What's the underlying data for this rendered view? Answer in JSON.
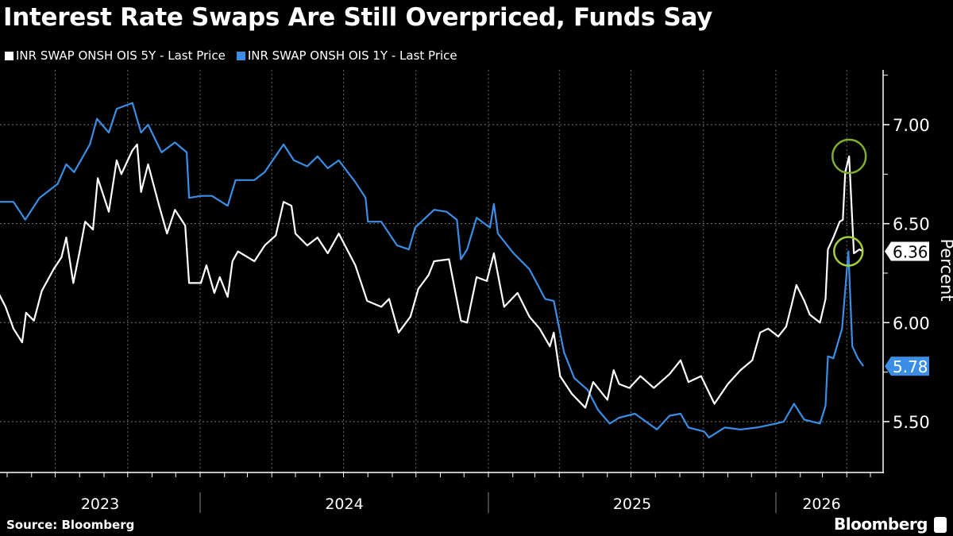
{
  "chart_data": {
    "type": "line",
    "title": "Interest Rate Swaps Are Still Overpriced, Funds Say",
    "ylabel": "Percent",
    "ylim": [
      5.3,
      7.3
    ],
    "yticks": [
      "7.00",
      "6.50",
      "6.00",
      "5.50"
    ],
    "ytick_values": [
      7.0,
      6.5,
      6.0,
      5.5
    ],
    "xticks": [
      "2023",
      "2024",
      "2025",
      "2026"
    ],
    "y_axis_side": "right",
    "grid": true,
    "legend_position": "top-left",
    "source": "Source: Bloomberg",
    "brand": "Bloomberg",
    "series": [
      {
        "name": "INR SWAP ONSH OIS 5Y - Last Price",
        "color": "#ffffff",
        "last_value_label": "6.36",
        "points": [
          [
            "2023-04-20",
            6.15
          ],
          [
            "2023-04-29",
            6.08
          ],
          [
            "2023-05-09",
            5.97
          ],
          [
            "2023-05-20",
            5.9
          ],
          [
            "2023-05-25",
            6.05
          ],
          [
            "2023-06-04",
            6.01
          ],
          [
            "2023-06-14",
            6.16
          ],
          [
            "2023-06-29",
            6.27
          ],
          [
            "2023-07-09",
            6.33
          ],
          [
            "2023-07-15",
            6.43
          ],
          [
            "2023-07-24",
            6.2
          ],
          [
            "2023-08-01",
            6.36
          ],
          [
            "2023-08-08",
            6.51
          ],
          [
            "2023-08-18",
            6.47
          ],
          [
            "2023-08-24",
            6.73
          ],
          [
            "2023-09-07",
            6.56
          ],
          [
            "2023-09-17",
            6.82
          ],
          [
            "2023-09-23",
            6.75
          ],
          [
            "2023-10-07",
            6.87
          ],
          [
            "2023-10-13",
            6.9
          ],
          [
            "2023-10-18",
            6.66
          ],
          [
            "2023-10-27",
            6.8
          ],
          [
            "2023-11-10",
            6.59
          ],
          [
            "2023-11-20",
            6.45
          ],
          [
            "2023-11-30",
            6.57
          ],
          [
            "2023-12-13",
            6.49
          ],
          [
            "2023-12-18",
            6.2
          ],
          [
            "2024-01-02",
            6.2
          ],
          [
            "2024-01-09",
            6.29
          ],
          [
            "2024-01-19",
            6.15
          ],
          [
            "2024-01-26",
            6.23
          ],
          [
            "2024-02-05",
            6.13
          ],
          [
            "2024-02-11",
            6.31
          ],
          [
            "2024-02-18",
            6.36
          ],
          [
            "2024-03-10",
            6.31
          ],
          [
            "2024-03-23",
            6.39
          ],
          [
            "2024-04-06",
            6.44
          ],
          [
            "2024-04-16",
            6.61
          ],
          [
            "2024-04-26",
            6.59
          ],
          [
            "2024-05-01",
            6.45
          ],
          [
            "2024-05-16",
            6.39
          ],
          [
            "2024-05-29",
            6.43
          ],
          [
            "2024-06-11",
            6.35
          ],
          [
            "2024-06-25",
            6.45
          ],
          [
            "2024-07-16",
            6.29
          ],
          [
            "2024-07-31",
            6.11
          ],
          [
            "2024-08-18",
            6.08
          ],
          [
            "2024-08-28",
            6.12
          ],
          [
            "2024-09-09",
            5.95
          ],
          [
            "2024-09-24",
            6.03
          ],
          [
            "2024-10-04",
            6.17
          ],
          [
            "2024-10-17",
            6.24
          ],
          [
            "2024-10-24",
            6.31
          ],
          [
            "2024-11-12",
            6.32
          ],
          [
            "2024-11-27",
            6.01
          ],
          [
            "2024-12-05",
            6.0
          ],
          [
            "2024-12-17",
            6.23
          ],
          [
            "2024-12-30",
            6.21
          ],
          [
            "2025-01-08",
            6.35
          ],
          [
            "2025-01-21",
            6.08
          ],
          [
            "2025-02-07",
            6.15
          ],
          [
            "2025-02-22",
            6.03
          ],
          [
            "2025-03-07",
            5.97
          ],
          [
            "2025-03-20",
            5.88
          ],
          [
            "2025-03-25",
            5.95
          ],
          [
            "2025-04-02",
            5.73
          ],
          [
            "2025-04-17",
            5.64
          ],
          [
            "2025-05-04",
            5.57
          ],
          [
            "2025-05-14",
            5.7
          ],
          [
            "2025-06-01",
            5.61
          ],
          [
            "2025-06-09",
            5.76
          ],
          [
            "2025-06-16",
            5.69
          ],
          [
            "2025-06-29",
            5.67
          ],
          [
            "2025-07-13",
            5.73
          ],
          [
            "2025-07-30",
            5.67
          ],
          [
            "2025-08-19",
            5.74
          ],
          [
            "2025-09-02",
            5.81
          ],
          [
            "2025-09-12",
            5.7
          ],
          [
            "2025-09-28",
            5.73
          ],
          [
            "2025-10-15",
            5.59
          ],
          [
            "2025-11-01",
            5.69
          ],
          [
            "2025-11-17",
            5.76
          ],
          [
            "2025-12-02",
            5.81
          ],
          [
            "2025-12-12",
            5.95
          ],
          [
            "2025-12-22",
            5.97
          ],
          [
            "2026-01-04",
            5.93
          ],
          [
            "2026-01-14",
            5.98
          ],
          [
            "2026-01-21",
            6.09
          ],
          [
            "2026-01-27",
            6.19
          ],
          [
            "2026-02-06",
            6.11
          ],
          [
            "2026-02-13",
            6.04
          ],
          [
            "2026-02-26",
            6.0
          ],
          [
            "2026-03-05",
            6.12
          ],
          [
            "2026-03-08",
            6.37
          ],
          [
            "2026-03-15",
            6.43
          ],
          [
            "2026-03-23",
            6.51
          ],
          [
            "2026-03-27",
            6.52
          ],
          [
            "2026-03-30",
            6.76
          ],
          [
            "2026-04-04",
            6.84
          ],
          [
            "2026-04-10",
            6.35
          ],
          [
            "2026-04-17",
            6.37
          ],
          [
            "2026-04-22",
            6.36
          ]
        ]
      },
      {
        "name": "INR SWAP ONSH OIS 1Y - Last Price",
        "color": "#3a8ee6",
        "last_value_label": "5.78",
        "points": [
          [
            "2023-04-20",
            6.61
          ],
          [
            "2023-05-09",
            6.61
          ],
          [
            "2023-05-24",
            6.52
          ],
          [
            "2023-06-11",
            6.63
          ],
          [
            "2023-07-04",
            6.7
          ],
          [
            "2023-07-15",
            6.8
          ],
          [
            "2023-07-25",
            6.76
          ],
          [
            "2023-08-14",
            6.9
          ],
          [
            "2023-08-23",
            7.03
          ],
          [
            "2023-09-07",
            6.96
          ],
          [
            "2023-09-17",
            7.08
          ],
          [
            "2023-10-07",
            7.11
          ],
          [
            "2023-10-18",
            6.96
          ],
          [
            "2023-10-27",
            7.0
          ],
          [
            "2023-11-13",
            6.86
          ],
          [
            "2023-11-30",
            6.91
          ],
          [
            "2023-12-15",
            6.86
          ],
          [
            "2023-12-18",
            6.63
          ],
          [
            "2024-01-02",
            6.64
          ],
          [
            "2024-01-16",
            6.64
          ],
          [
            "2024-02-05",
            6.59
          ],
          [
            "2024-02-15",
            6.72
          ],
          [
            "2024-03-10",
            6.72
          ],
          [
            "2024-03-23",
            6.76
          ],
          [
            "2024-04-16",
            6.9
          ],
          [
            "2024-04-29",
            6.82
          ],
          [
            "2024-05-16",
            6.79
          ],
          [
            "2024-05-29",
            6.84
          ],
          [
            "2024-06-11",
            6.78
          ],
          [
            "2024-06-25",
            6.82
          ],
          [
            "2024-07-16",
            6.71
          ],
          [
            "2024-07-29",
            6.63
          ],
          [
            "2024-08-01",
            6.51
          ],
          [
            "2024-08-18",
            6.51
          ],
          [
            "2024-09-07",
            6.39
          ],
          [
            "2024-09-22",
            6.37
          ],
          [
            "2024-09-30",
            6.48
          ],
          [
            "2024-10-24",
            6.57
          ],
          [
            "2024-11-09",
            6.56
          ],
          [
            "2024-11-22",
            6.52
          ],
          [
            "2024-11-27",
            6.32
          ],
          [
            "2024-12-05",
            6.37
          ],
          [
            "2024-12-17",
            6.53
          ],
          [
            "2025-01-03",
            6.48
          ],
          [
            "2025-01-08",
            6.6
          ],
          [
            "2025-01-13",
            6.45
          ],
          [
            "2025-02-02",
            6.35
          ],
          [
            "2025-02-22",
            6.27
          ],
          [
            "2025-03-14",
            6.12
          ],
          [
            "2025-03-25",
            6.11
          ],
          [
            "2025-04-07",
            5.85
          ],
          [
            "2025-04-20",
            5.72
          ],
          [
            "2025-05-07",
            5.66
          ],
          [
            "2025-05-20",
            5.56
          ],
          [
            "2025-06-04",
            5.49
          ],
          [
            "2025-06-16",
            5.52
          ],
          [
            "2025-07-06",
            5.54
          ],
          [
            "2025-08-03",
            5.46
          ],
          [
            "2025-08-19",
            5.53
          ],
          [
            "2025-09-02",
            5.54
          ],
          [
            "2025-09-12",
            5.47
          ],
          [
            "2025-10-02",
            5.45
          ],
          [
            "2025-10-08",
            5.42
          ],
          [
            "2025-10-28",
            5.47
          ],
          [
            "2025-11-17",
            5.46
          ],
          [
            "2025-12-08",
            5.47
          ],
          [
            "2026-01-01",
            5.49
          ],
          [
            "2026-01-11",
            5.5
          ],
          [
            "2026-01-24",
            5.59
          ],
          [
            "2026-02-06",
            5.51
          ],
          [
            "2026-02-26",
            5.49
          ],
          [
            "2026-03-05",
            5.58
          ],
          [
            "2026-03-08",
            5.83
          ],
          [
            "2026-03-15",
            5.82
          ],
          [
            "2026-03-26",
            5.97
          ],
          [
            "2026-04-03",
            6.36
          ],
          [
            "2026-04-08",
            5.88
          ],
          [
            "2026-04-15",
            5.82
          ],
          [
            "2026-04-22",
            5.78
          ]
        ]
      }
    ],
    "annotations": [
      {
        "shape": "circle",
        "color": "#7fad2e",
        "date": "2026-04-04",
        "value": 6.84
      },
      {
        "shape": "circle",
        "color": "#a6cf3c",
        "date": "2026-04-03",
        "value": 6.36
      }
    ]
  }
}
